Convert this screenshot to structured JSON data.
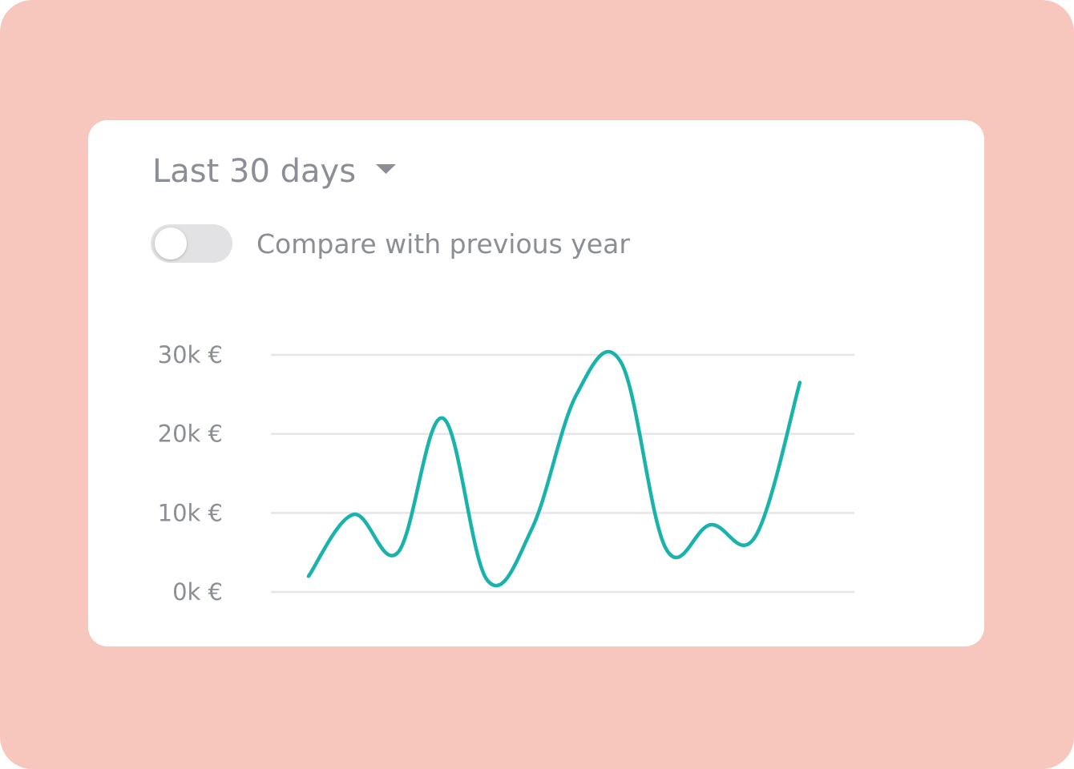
{
  "period_selector": {
    "label": "Last 30 days"
  },
  "compare_toggle": {
    "label": "Compare with previous year"
  },
  "chart_data": {
    "type": "line",
    "categories": [
      null,
      null,
      null,
      null,
      null,
      null,
      null,
      null,
      null,
      null,
      null,
      null
    ],
    "series": [
      {
        "color": "#19b3ac",
        "values": [
          2,
          9.8,
          5,
          22,
          1.5,
          8,
          25,
          29,
          5.5,
          8.5,
          7,
          26.5
        ]
      }
    ],
    "ylim": [
      0,
      30
    ],
    "yticks": [
      {
        "value": 0,
        "label": "0k €"
      },
      {
        "value": 10,
        "label": "10k €"
      },
      {
        "value": 20,
        "label": "20k €"
      },
      {
        "value": 30,
        "label": "30k €"
      }
    ],
    "grid": true
  }
}
